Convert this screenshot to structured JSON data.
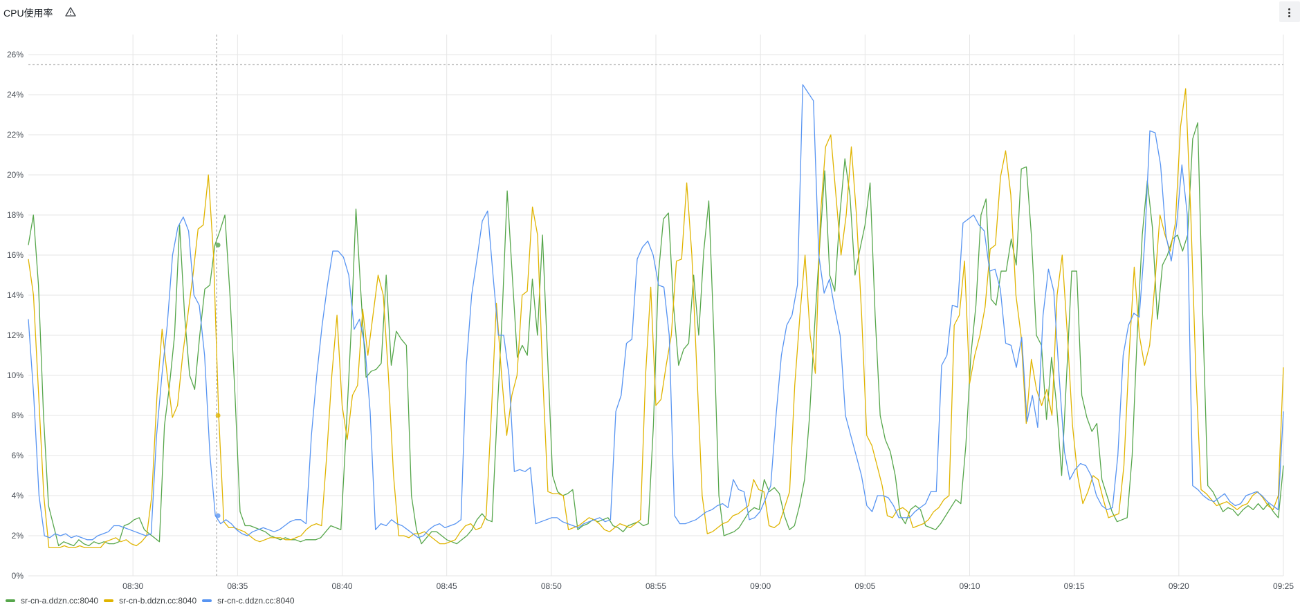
{
  "panel": {
    "title": "CPU使用率",
    "warning_icon": "warning-triangle-icon",
    "menu_icon": "kebab-menu-icon"
  },
  "colors": {
    "series_a": "#56a64b",
    "series_b": "#e0b400",
    "series_c": "#5794f2",
    "grid": "#e6e6e6",
    "axis_text": "#464c54",
    "threshold": "#bdbdbd"
  },
  "chart_data": {
    "type": "line",
    "title": "CPU使用率",
    "xlabel": "",
    "ylabel": "",
    "ylim": [
      0,
      27
    ],
    "ytick_labels": [
      "0%",
      "2%",
      "4%",
      "6%",
      "8%",
      "10%",
      "12%",
      "14%",
      "16%",
      "18%",
      "20%",
      "22%",
      "24%",
      "26%"
    ],
    "yticks": [
      0,
      2,
      4,
      6,
      8,
      10,
      12,
      14,
      16,
      18,
      20,
      22,
      24,
      26
    ],
    "x_range": [
      "08:25",
      "09:25"
    ],
    "xticks": [
      "08:30",
      "08:35",
      "08:40",
      "08:45",
      "08:50",
      "08:55",
      "09:00",
      "09:05",
      "09:10",
      "09:15",
      "09:20",
      "09:25"
    ],
    "grid": true,
    "legend_position": "bottom-left",
    "threshold": 25.5,
    "crosshair_time": "08:34",
    "series": [
      {
        "name": "sr-cn-a.ddzn.cc:8040",
        "color": "#56a64b",
        "values": [
          16.5,
          18,
          14.5,
          8,
          3.5,
          2.5,
          1.5,
          1.7,
          1.6,
          1.5,
          1.8,
          1.6,
          1.5,
          1.7,
          1.6,
          1.7,
          1.6,
          1.6,
          1.7,
          2.5,
          2.6,
          2.8,
          2.9,
          2.3,
          2.1,
          1.9,
          1.7,
          7.5,
          9.5,
          12,
          17.5,
          13,
          10,
          9.3,
          12,
          14.3,
          14.5,
          16.5,
          17.2,
          18,
          14,
          9,
          3.2,
          2.5,
          2.5,
          2.4,
          2.3,
          2.2,
          2,
          1.9,
          1.8,
          1.9,
          1.8,
          1.8,
          1.7,
          1.8,
          1.8,
          1.8,
          1.9,
          2.2,
          2.5,
          2.4,
          2.3,
          7,
          12,
          18.3,
          14,
          9.9,
          10.2,
          10.3,
          10.6,
          15,
          10.5,
          12.2,
          11.8,
          11.5,
          4,
          2.3,
          1.6,
          1.9,
          2.2,
          2.2,
          2,
          1.8,
          1.7,
          1.6,
          1.8,
          2,
          2.3,
          2.8,
          3.1,
          2.8,
          2.7,
          8,
          13,
          19.2,
          15,
          10.9,
          11.5,
          11,
          14.8,
          12,
          17,
          11,
          5,
          4.2,
          4,
          4.1,
          4.3,
          2.3,
          2.5,
          2.6,
          2.8,
          2.7,
          2.8,
          2.9,
          2.5,
          2.4,
          2.2,
          2.5,
          2.6,
          2.7,
          2.5,
          2.6,
          7.5,
          15,
          17.8,
          18.1,
          13.5,
          10.5,
          11.3,
          11.6,
          15,
          12,
          16.2,
          18.7,
          12,
          4,
          2,
          2.1,
          2.2,
          2.4,
          2.8,
          3.2,
          3.4,
          3.3,
          4.8,
          4.2,
          4.4,
          4.1,
          3,
          2.3,
          2.5,
          3.5,
          4.8,
          8,
          12.5,
          16.5,
          20.2,
          15,
          14.2,
          18,
          20.8,
          19,
          15,
          16.3,
          17.5,
          19.6,
          13,
          8,
          6.8,
          6.2,
          5,
          3,
          2.6,
          3.3,
          3.5,
          3.3,
          2.5,
          2.4,
          2.3,
          2.6,
          3,
          3.4,
          3.8,
          3.6,
          6.5,
          11,
          13.5,
          18,
          18.8,
          13.8,
          13.5,
          15.2,
          15.2,
          16.8,
          15.5,
          20.3,
          20.4,
          17,
          12,
          11.5,
          7.8,
          10.9,
          8.5,
          5,
          10,
          15.2,
          15.2,
          9,
          7.9,
          7.2,
          7.6,
          4.8,
          4,
          3.2,
          2.7,
          2.8,
          2.9,
          6,
          12,
          17,
          19.7,
          17.4,
          12.8,
          15.5,
          16,
          16.8,
          17,
          16.2,
          17,
          21.8,
          22.6,
          13,
          4.5,
          4.2,
          3.7,
          3.2,
          3.4,
          3.3,
          3,
          3.3,
          3.5,
          3.3,
          3.6,
          3.3,
          3.6,
          3.2,
          2.9,
          5.5
        ]
      },
      {
        "name": "sr-cn-b.ddzn.cc:8040",
        "color": "#e0b400",
        "values": [
          15.8,
          14,
          9,
          4,
          1.4,
          1.4,
          1.4,
          1.5,
          1.4,
          1.4,
          1.5,
          1.4,
          1.4,
          1.4,
          1.4,
          1.7,
          1.8,
          1.9,
          1.7,
          1.8,
          1.6,
          1.5,
          1.7,
          2,
          4,
          9,
          12.3,
          10,
          7.9,
          8.5,
          11,
          13,
          15,
          17.3,
          17.5,
          20,
          16,
          8,
          2.7,
          2.4,
          2.4,
          2.3,
          2.2,
          2,
          1.8,
          1.7,
          1.8,
          1.9,
          1.9,
          1.9,
          1.8,
          1.8,
          1.9,
          2,
          2.3,
          2.5,
          2.6,
          2.5,
          6,
          10,
          13,
          8.5,
          6.8,
          9,
          9.5,
          13.3,
          11,
          13,
          15,
          14,
          10,
          5,
          2,
          2,
          1.9,
          2.1,
          2.1,
          2.2,
          2,
          1.8,
          1.6,
          1.6,
          1.7,
          1.8,
          2.2,
          2.5,
          2.6,
          2.3,
          2.4,
          3,
          8,
          13.6,
          10,
          7,
          9,
          10,
          14,
          14.2,
          18.4,
          17,
          10,
          4.2,
          4.1,
          4.1,
          4,
          2.3,
          2.4,
          2.5,
          2.7,
          2.9,
          2.8,
          2.6,
          2.3,
          2.2,
          2.4,
          2.6,
          2.5,
          2.4,
          2.6,
          2.8,
          10,
          14.4,
          8.5,
          8.8,
          10.5,
          12,
          15.7,
          15.8,
          19.6,
          16,
          10,
          4,
          2.1,
          2.2,
          2.4,
          2.6,
          2.7,
          3,
          3.1,
          3.3,
          3.5,
          4.8,
          4.3,
          4.2,
          2.5,
          2.4,
          2.6,
          3.4,
          4.2,
          9.5,
          13,
          16,
          12,
          10.1,
          18,
          21.4,
          22,
          19,
          16,
          18,
          21.4,
          18,
          13,
          7,
          6.5,
          5.5,
          4.5,
          3,
          2.9,
          3.3,
          3.4,
          3.2,
          2.4,
          2.5,
          2.6,
          2.8,
          3.2,
          3.4,
          3.8,
          4,
          12.5,
          13,
          15.7,
          9.6,
          11,
          12,
          13.4,
          16.3,
          16.5,
          19.9,
          21.2,
          19,
          14,
          12,
          7.6,
          10.8,
          9.3,
          8.5,
          9.3,
          8,
          14,
          16,
          12,
          7.5,
          5,
          3.6,
          4.2,
          5,
          4.8,
          3.8,
          2.9,
          3,
          3.1,
          5.5,
          11,
          15.4,
          12,
          10.5,
          11.5,
          14.5,
          18,
          17,
          16.2,
          17.6,
          22.4,
          24.3,
          18,
          10,
          4.3,
          4.1,
          3.8,
          3.5,
          3.6,
          3.7,
          3.5,
          3.3,
          3.5,
          3.6,
          4,
          4.2,
          3.9,
          3.5,
          3.3,
          4,
          10.4
        ]
      },
      {
        "name": "sr-cn-c.ddzn.cc:8040",
        "color": "#5794f2",
        "values": [
          12.8,
          9,
          4,
          2,
          1.9,
          2.1,
          2,
          2.1,
          1.9,
          2,
          1.9,
          1.8,
          1.8,
          2,
          2.1,
          2.2,
          2.5,
          2.5,
          2.4,
          2.3,
          2.2,
          2.1,
          2,
          2.1,
          7,
          10,
          12.5,
          16,
          17.4,
          17.9,
          17.2,
          14,
          13.5,
          11,
          6,
          3,
          2.6,
          2.8,
          2.6,
          2.3,
          2.1,
          2,
          2.2,
          2.3,
          2.4,
          2.3,
          2.2,
          2.3,
          2.5,
          2.7,
          2.8,
          2.8,
          2.6,
          7,
          10,
          12.5,
          14.5,
          16.2,
          16.2,
          15.9,
          15,
          12.3,
          12.8,
          11.5,
          8.2,
          2.3,
          2.6,
          2.5,
          2.8,
          2.6,
          2.5,
          2.3,
          2.1,
          1.9,
          2,
          2.3,
          2.5,
          2.6,
          2.4,
          2.5,
          2.6,
          2.8,
          10.5,
          14,
          15.8,
          17.7,
          18.2,
          15,
          12,
          12,
          10,
          5.2,
          5.3,
          5.2,
          5.4,
          2.6,
          2.7,
          2.8,
          2.9,
          2.9,
          2.7,
          2.6,
          2.5,
          2.4,
          2.6,
          2.7,
          2.8,
          2.9,
          2.7,
          2.8,
          8.2,
          9,
          11.6,
          11.8,
          15.8,
          16.4,
          16.7,
          16,
          14.5,
          14.4,
          12,
          3,
          2.6,
          2.6,
          2.7,
          2.8,
          3,
          3.2,
          3.3,
          3.5,
          3.6,
          3.4,
          4.8,
          4.3,
          4.2,
          2.8,
          2.9,
          3.2,
          3.8,
          4.5,
          8,
          11,
          12.5,
          13,
          14.5,
          24.5,
          24.1,
          23.7,
          16,
          14.1,
          14.8,
          13.3,
          12,
          8,
          7,
          6,
          5,
          3.5,
          3.2,
          4,
          4,
          3.9,
          3.5,
          2.9,
          2.9,
          2.9,
          3.2,
          3.4,
          3.6,
          4.2,
          4.2,
          10.5,
          11,
          13.5,
          13.4,
          17.6,
          17.8,
          18,
          17.5,
          17.2,
          15.2,
          15.3,
          14.3,
          11.6,
          11.5,
          10.4,
          11.9,
          7.7,
          9,
          7.4,
          13,
          15.3,
          14.2,
          10,
          6.2,
          4.8,
          5.3,
          5.6,
          5.5,
          5,
          4,
          3.5,
          3.3,
          3.4,
          6,
          11,
          12.5,
          13.1,
          12.9,
          16.5,
          22.2,
          22.1,
          20.5,
          17,
          15.7,
          17.5,
          20.5,
          18,
          4.5,
          4.3,
          4,
          3.8,
          3.7,
          3.9,
          4.1,
          3.7,
          3.5,
          3.6,
          4,
          4.1,
          4.2,
          4,
          3.7,
          3.5,
          3.3,
          8.2
        ]
      }
    ]
  }
}
